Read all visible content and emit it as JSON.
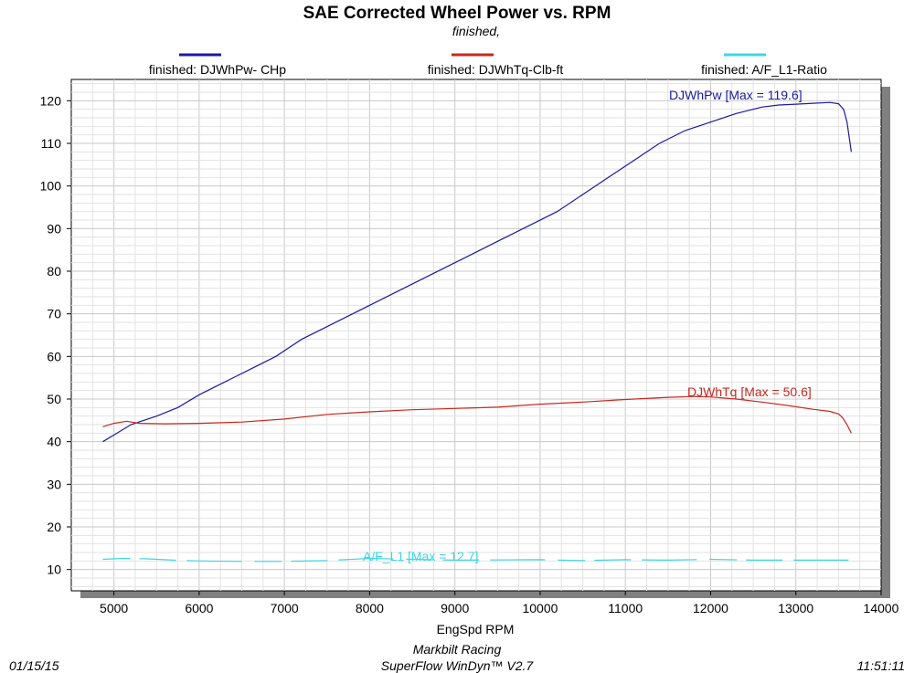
{
  "chart_data": {
    "type": "line",
    "title": "SAE Corrected Wheel Power vs. RPM",
    "subtitle": "finished,",
    "xlabel": "EngSpd  RPM",
    "ylabel": "",
    "xlim": [
      4500,
      14000
    ],
    "ylim": [
      5,
      125
    ],
    "x_ticks": [
      5000,
      6000,
      7000,
      8000,
      9000,
      10000,
      11000,
      12000,
      13000,
      14000
    ],
    "y_ticks": [
      10,
      20,
      30,
      40,
      50,
      60,
      70,
      80,
      90,
      100,
      110,
      120
    ],
    "grid": true,
    "legend_position": "top",
    "series": [
      {
        "name": "finished: DJWhPw- CHp",
        "color": "#1a1aa0",
        "annotation": "DJWhPw [Max = 119.6]",
        "x": [
          4870,
          5200,
          5500,
          5750,
          6000,
          6300,
          6600,
          6900,
          7200,
          7500,
          7800,
          8100,
          8400,
          8700,
          9000,
          9300,
          9600,
          9900,
          10200,
          10500,
          10800,
          11100,
          11400,
          11700,
          12000,
          12300,
          12600,
          12800,
          13000,
          13200,
          13400,
          13500,
          13560,
          13600,
          13650
        ],
        "y": [
          40,
          44,
          46,
          48,
          51,
          54,
          57,
          60,
          64,
          67,
          70,
          73,
          76,
          79,
          82,
          85,
          88,
          91,
          94,
          98,
          102,
          106,
          110,
          113,
          115,
          117,
          118.5,
          119,
          119.2,
          119.4,
          119.6,
          119.3,
          118,
          115,
          108
        ]
      },
      {
        "name": "finished: DJWhTq-Clb-ft",
        "color": "#c8281e",
        "annotation": "DJWhTq [Max = 50.6]",
        "x": [
          4870,
          5000,
          5150,
          5300,
          5600,
          6000,
          6500,
          7000,
          7500,
          8000,
          8500,
          9000,
          9500,
          10000,
          10500,
          11000,
          11500,
          11800,
          12000,
          12300,
          12600,
          12900,
          13200,
          13400,
          13500,
          13550,
          13600,
          13650
        ],
        "y": [
          43.5,
          44.3,
          44.8,
          44.3,
          44.2,
          44.3,
          44.6,
          45.3,
          46.4,
          47,
          47.5,
          47.8,
          48.1,
          48.8,
          49.3,
          49.9,
          50.4,
          50.6,
          50.5,
          50,
          49.3,
          48.5,
          47.6,
          47.1,
          46.5,
          45.6,
          44,
          42
        ]
      },
      {
        "name": "finished: A/F_L1-Ratio",
        "color": "#3cd7e6",
        "annotation": "A/F_L1 [Max = 12.7]",
        "x": [
          4870,
          5100,
          5400,
          5700,
          6000,
          6500,
          7000,
          7500,
          8000,
          8500,
          9000,
          10000,
          10500,
          11000,
          11500,
          12000,
          12500,
          13000,
          13300,
          13650
        ],
        "y": [
          12.4,
          12.6,
          12.5,
          12.2,
          12,
          11.9,
          11.9,
          12.1,
          12.6,
          12.4,
          12.2,
          12.3,
          12.1,
          12.3,
          12.2,
          12.4,
          12.2,
          12.2,
          12.2,
          12.2
        ]
      }
    ]
  },
  "footer": {
    "date": "01/15/15",
    "company": "Markbilt Racing",
    "software": "SuperFlow WinDyn™ V2.7",
    "time": "11:51:11"
  }
}
